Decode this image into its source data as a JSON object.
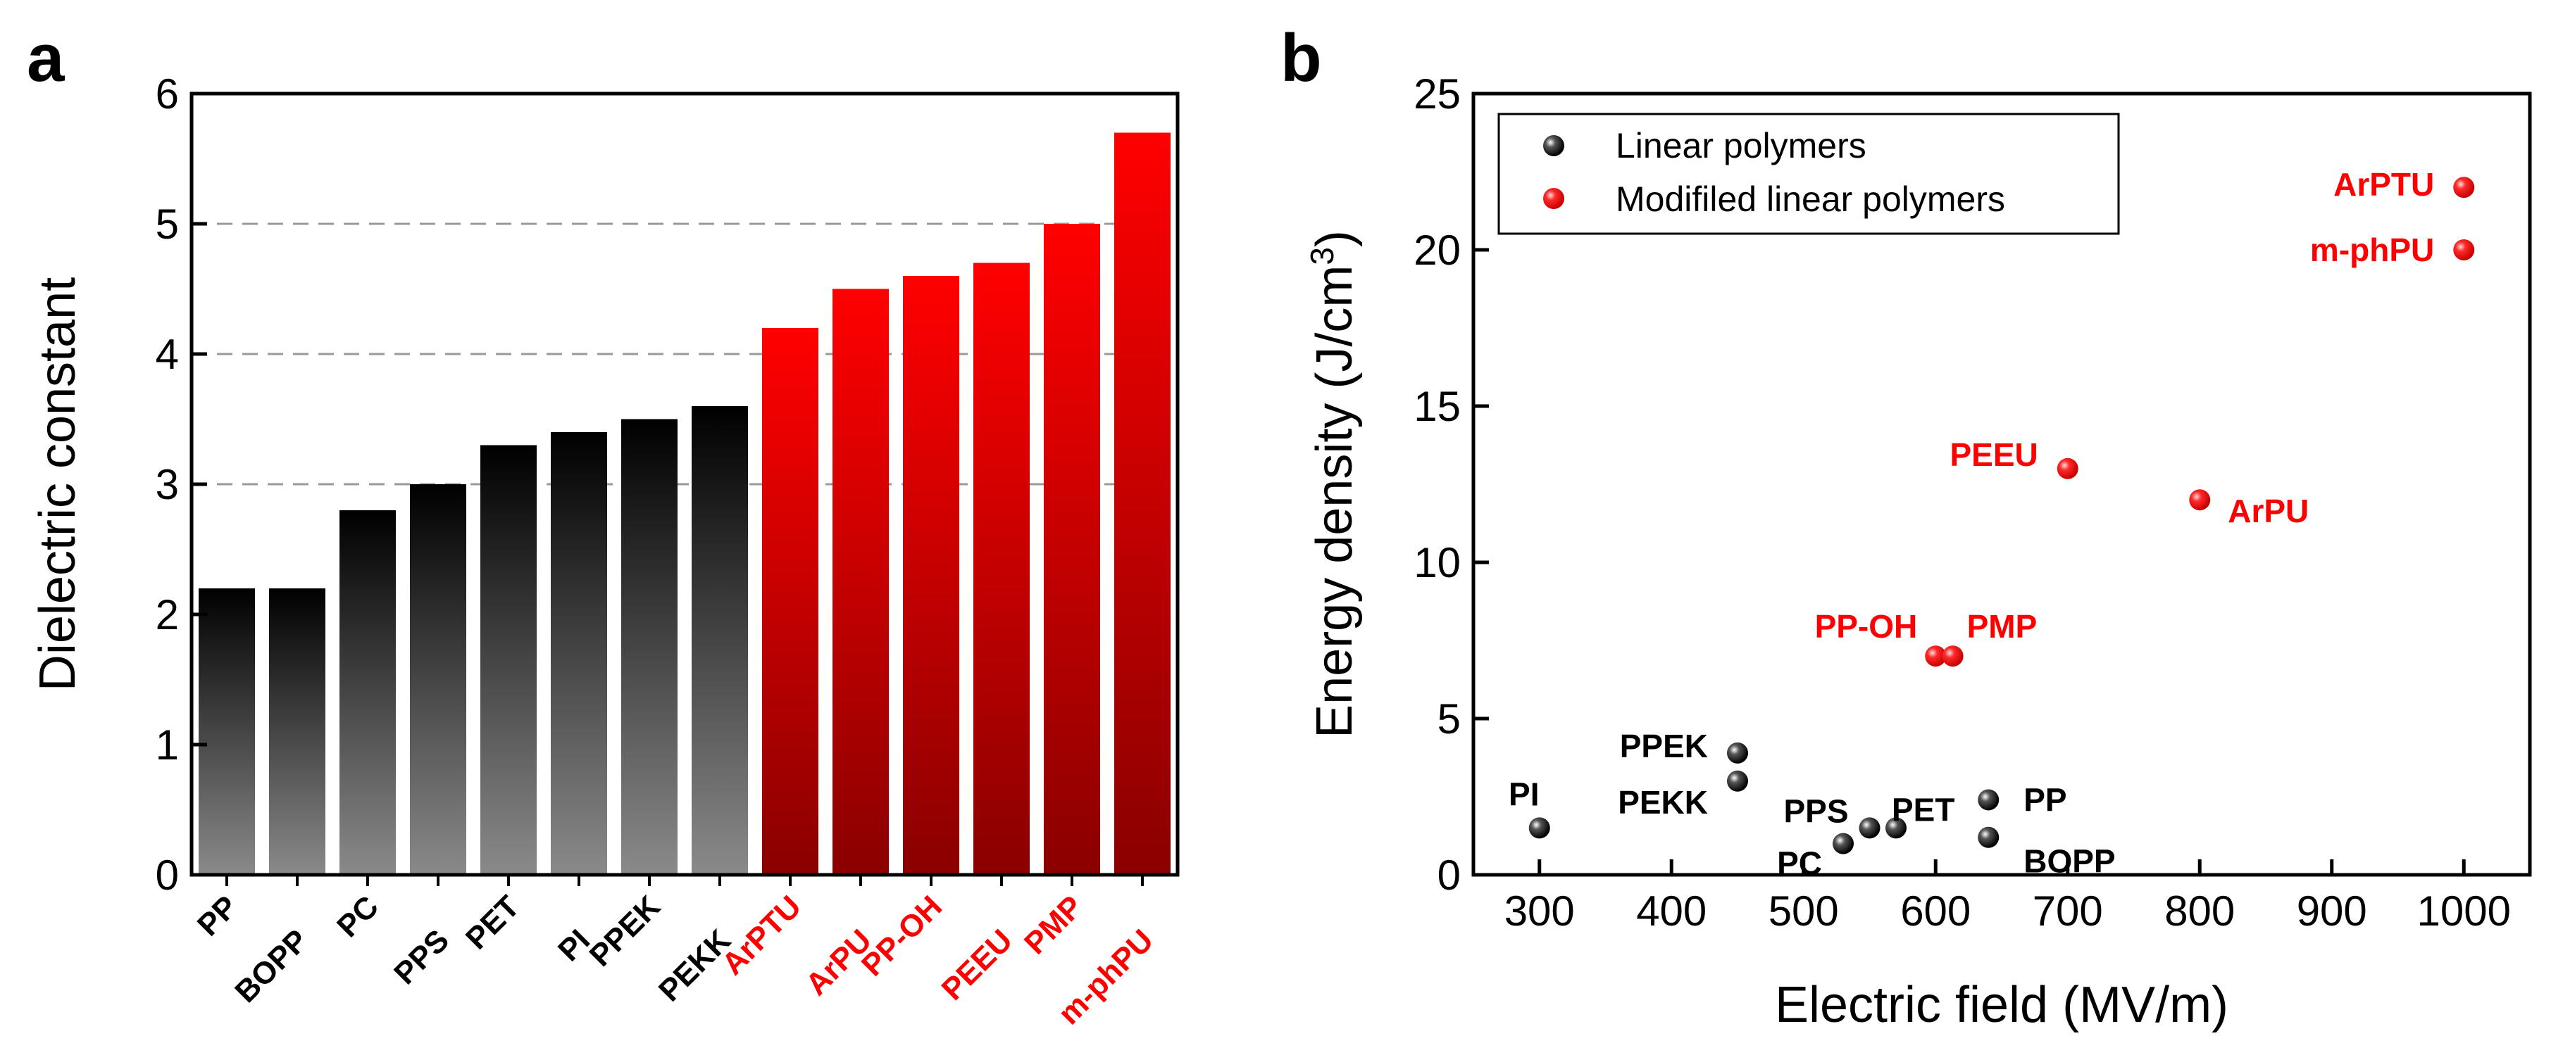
{
  "colors": {
    "linear": "#000000",
    "modified": "#ff0000"
  },
  "chart_data": [
    {
      "panel": "a",
      "type": "bar",
      "title": "",
      "xlabel": "",
      "ylabel": "Dielectric constant",
      "ylim": [
        0,
        6
      ],
      "yticks": [
        0,
        1,
        2,
        3,
        4,
        5,
        6
      ],
      "grid_lines": [
        3,
        4,
        5
      ],
      "categories": [
        "PP",
        "BOPP",
        "PC",
        "PPS",
        "PET",
        "PI",
        "PPEK",
        "PEKK",
        "ArPTU",
        "ArPU",
        "PP-OH",
        "PEEU",
        "PMP",
        "m-phPU"
      ],
      "values": [
        2.2,
        2.2,
        2.8,
        3.0,
        3.3,
        3.4,
        3.5,
        3.6,
        4.2,
        4.5,
        4.6,
        4.7,
        5.0,
        5.7
      ],
      "groups": [
        "linear",
        "linear",
        "linear",
        "linear",
        "linear",
        "linear",
        "linear",
        "linear",
        "modified",
        "modified",
        "modified",
        "modified",
        "modified",
        "modified"
      ]
    },
    {
      "panel": "b",
      "type": "scatter",
      "title": "",
      "xlabel": "Electric field (MV/m)",
      "ylabel_main": "Energy density (J/cm",
      "ylabel_sup": "3",
      "ylabel_close": ")",
      "xlim": [
        250,
        1050
      ],
      "ylim": [
        0,
        25
      ],
      "xticks": [
        300,
        400,
        500,
        600,
        700,
        800,
        900,
        1000
      ],
      "yticks": [
        0,
        5,
        10,
        15,
        20,
        25
      ],
      "legend": [
        "Linear polymers",
        "Modifiled linear polymers"
      ],
      "legend_position": "top-left",
      "series": [
        {
          "name": "Linear polymers",
          "group": "linear",
          "points": [
            {
              "label": "PI",
              "x": 300,
              "y": 1.5
            },
            {
              "label": "PPEK",
              "x": 450,
              "y": 3.9
            },
            {
              "label": "PEKK",
              "x": 450,
              "y": 3.0
            },
            {
              "label": "PC",
              "x": 530,
              "y": 1.0
            },
            {
              "label": "PPS",
              "x": 550,
              "y": 1.5
            },
            {
              "label": "PET",
              "x": 570,
              "y": 1.5
            },
            {
              "label": "PP",
              "x": 640,
              "y": 2.4
            },
            {
              "label": "BOPP",
              "x": 640,
              "y": 1.2
            }
          ]
        },
        {
          "name": "Modifiled linear polymers",
          "group": "modified",
          "points": [
            {
              "label": "PP-OH",
              "x": 600,
              "y": 7.0
            },
            {
              "label": "PMP",
              "x": 613,
              "y": 7.0
            },
            {
              "label": "PEEU",
              "x": 700,
              "y": 13.0
            },
            {
              "label": "ArPU",
              "x": 800,
              "y": 12.0
            },
            {
              "label": "ArPTU",
              "x": 1000,
              "y": 22.0
            },
            {
              "label": "m-phPU",
              "x": 1000,
              "y": 20.0
            }
          ]
        }
      ]
    }
  ]
}
